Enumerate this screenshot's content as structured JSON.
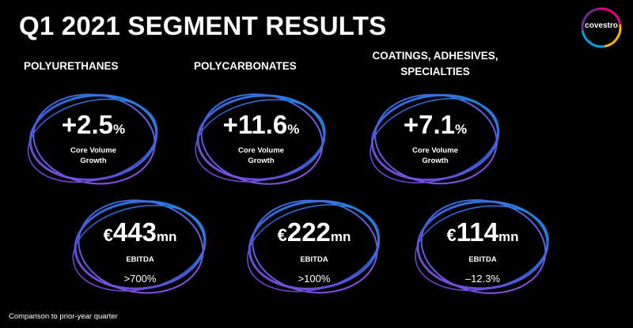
{
  "title": "Q1 2021 SEGMENT RESULTS",
  "logo": {
    "text": "covestro",
    "colors": [
      "#e6007e",
      "#ffb300",
      "#009fe3",
      "#6f2c91"
    ]
  },
  "accent": {
    "ring_start": "#1d62d6",
    "ring_end": "#8b3fd6"
  },
  "segments": [
    {
      "name": "POLYURETHANES",
      "volume": {
        "value": "+2.5",
        "unit": "%",
        "label_line1": "Core Volume",
        "label_line2": "Growth"
      },
      "ebitda": {
        "currency": "€",
        "value": "443",
        "unit": "mn",
        "label": "EBITDA",
        "comparison": ">700%"
      }
    },
    {
      "name": "POLYCARBONATES",
      "volume": {
        "value": "+11.6",
        "unit": "%",
        "label_line1": "Core Volume",
        "label_line2": "Growth"
      },
      "ebitda": {
        "currency": "€",
        "value": "222",
        "unit": "mn",
        "label": "EBITDA",
        "comparison": ">100%"
      }
    },
    {
      "name_line1": "COATINGS, ADHESIVES,",
      "name_line2": "SPECIALTIES",
      "volume": {
        "value": "+7.1",
        "unit": "%",
        "label_line1": "Core Volume",
        "label_line2": "Growth"
      },
      "ebitda": {
        "currency": "€",
        "value": "114",
        "unit": "mn",
        "label": "EBITDA",
        "comparison": "–12.3%"
      }
    }
  ],
  "footnote": "Comparison to prior-year quarter"
}
